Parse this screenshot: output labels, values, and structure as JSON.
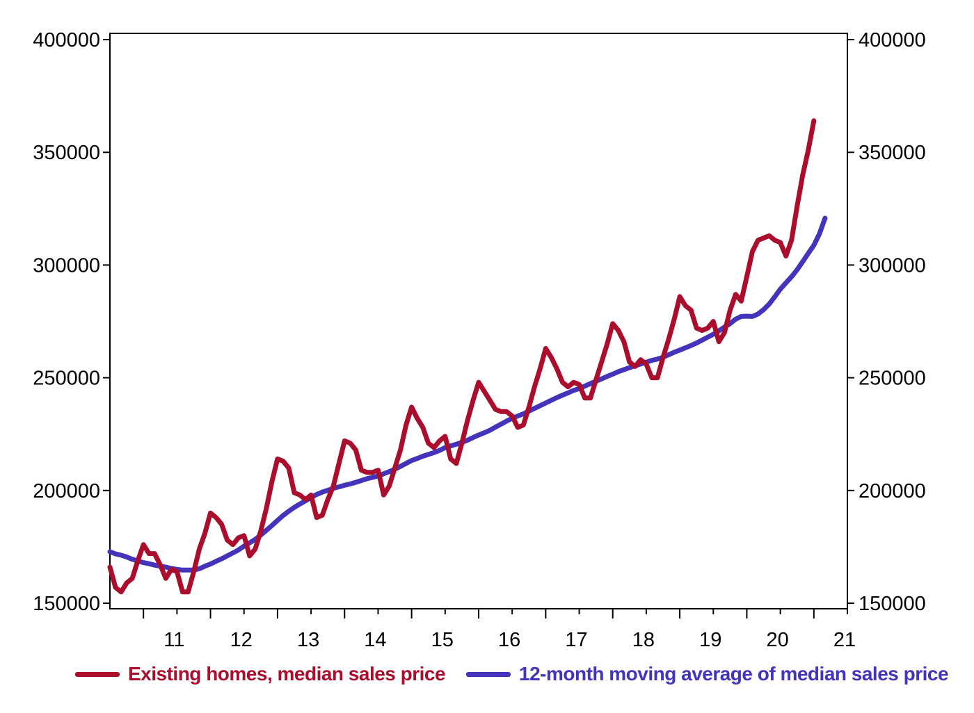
{
  "chart_data": {
    "type": "line",
    "title": "",
    "xlabel": "",
    "ylabel": "",
    "x_tick_labels": [
      "11",
      "12",
      "13",
      "14",
      "15",
      "16",
      "17",
      "18",
      "19",
      "20",
      "21"
    ],
    "y_tick_labels_left": [
      "150000",
      "200000",
      "250000",
      "300000",
      "350000",
      "400000"
    ],
    "y_tick_labels_right": [
      "150000",
      "200000",
      "250000",
      "300000",
      "350000",
      "400000"
    ],
    "ylim": [
      150000,
      400000
    ],
    "xlim": [
      "2010-07",
      "2021-07"
    ],
    "x_frequency": "monthly",
    "x_start": "2010-07",
    "grid": false,
    "legend_position": "bottom",
    "series": [
      {
        "name": "Existing homes, median sales price",
        "color": "#AA0E2C",
        "values": [
          166000,
          157000,
          155000,
          159000,
          161000,
          169000,
          176000,
          172000,
          172000,
          167000,
          161000,
          165000,
          164000,
          155000,
          155000,
          164000,
          174000,
          181000,
          190000,
          188000,
          185000,
          178000,
          176000,
          179000,
          180000,
          171000,
          174000,
          182000,
          192000,
          204000,
          214000,
          213000,
          210000,
          199000,
          198000,
          196000,
          198000,
          188000,
          189000,
          196000,
          202000,
          212000,
          222000,
          221000,
          218000,
          209000,
          208000,
          208000,
          209000,
          198000,
          202000,
          210000,
          218000,
          229000,
          237000,
          232000,
          228000,
          221000,
          219000,
          222000,
          224000,
          214000,
          212000,
          221000,
          231000,
          240000,
          248000,
          244000,
          240000,
          236000,
          235000,
          235000,
          233000,
          228000,
          229000,
          237000,
          246000,
          254000,
          263000,
          259000,
          254000,
          248000,
          246000,
          248000,
          247000,
          241000,
          241000,
          249000,
          257000,
          265000,
          274000,
          271000,
          266000,
          257000,
          255000,
          258000,
          256000,
          250000,
          250000,
          259000,
          267000,
          276000,
          286000,
          282000,
          280000,
          272000,
          271000,
          272000,
          275000,
          266000,
          270000,
          280000,
          287000,
          284000,
          295000,
          306000,
          311000,
          312000,
          313000,
          311000,
          310000,
          304000,
          311000,
          326000,
          340000,
          351000,
          364000
        ]
      },
      {
        "name": "12-month moving average of median sales price",
        "color": "#4433BB",
        "values": [
          172800,
          171900,
          171300,
          170500,
          169500,
          168700,
          168000,
          167500,
          166900,
          166400,
          166000,
          165400,
          165000,
          164700,
          164700,
          164700,
          165300,
          166400,
          167400,
          168600,
          169700,
          171000,
          172300,
          173600,
          175300,
          176800,
          178300,
          180200,
          182300,
          184500,
          186700,
          188900,
          190800,
          192500,
          194000,
          195400,
          196900,
          198200,
          199300,
          200100,
          201000,
          201600,
          202300,
          202900,
          203600,
          204400,
          205200,
          205800,
          206400,
          207400,
          208400,
          209400,
          210700,
          212000,
          213300,
          214200,
          215200,
          216000,
          216800,
          217800,
          219000,
          219800,
          220500,
          221400,
          222300,
          223500,
          224600,
          225600,
          226700,
          228100,
          229400,
          230800,
          232000,
          233000,
          234000,
          235200,
          236400,
          237600,
          238800,
          240000,
          241200,
          242300,
          243300,
          244400,
          245200,
          246300,
          247400,
          248500,
          249500,
          250600,
          251600,
          252700,
          253600,
          254500,
          255300,
          256100,
          256900,
          257700,
          258300,
          259100,
          260200,
          261300,
          262300,
          263300,
          264300,
          265400,
          266700,
          268000,
          269300,
          270800,
          272500,
          274000,
          276000,
          277200,
          277300,
          277200,
          278300,
          280200,
          282700,
          285900,
          289300,
          292100,
          294800,
          297900,
          301500,
          305200,
          308800,
          313800,
          320800
        ]
      }
    ]
  },
  "legend": {
    "items": [
      {
        "label": "Existing homes, median sales price",
        "color": "#AA0E2C"
      },
      {
        "label": "12-month moving average of median sales price",
        "color": "#4433BB"
      }
    ]
  }
}
